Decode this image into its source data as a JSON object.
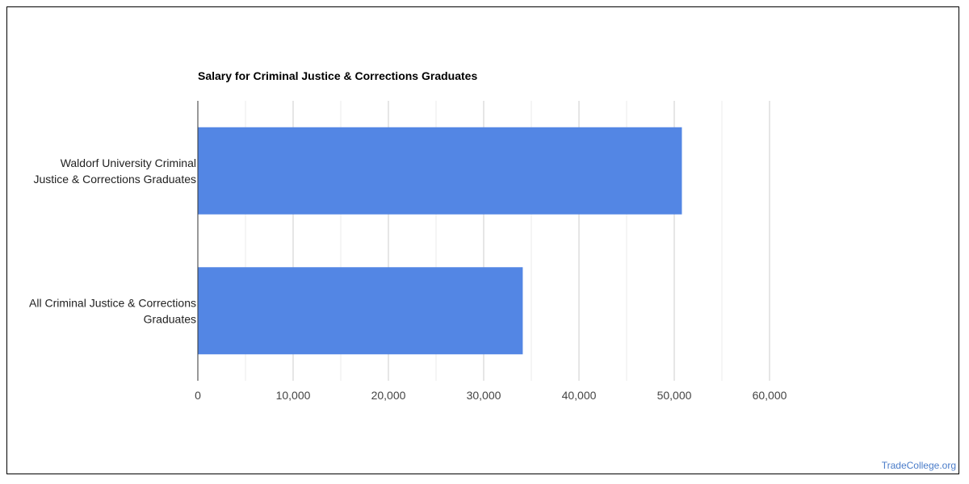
{
  "chart_data": {
    "type": "bar",
    "orientation": "horizontal",
    "title": "Salary for Criminal Justice & Corrections Graduates",
    "categories": [
      [
        "Waldorf University Criminal",
        "Justice & Corrections Graduates"
      ],
      [
        "All Criminal Justice & Corrections",
        "Graduates"
      ]
    ],
    "values": [
      50800,
      34100
    ],
    "xlim": [
      0,
      60000
    ],
    "x_ticks": [
      0,
      10000,
      20000,
      30000,
      40000,
      50000,
      60000
    ],
    "x_tick_labels": [
      "0",
      "10,000",
      "20,000",
      "30,000",
      "40,000",
      "50,000",
      "60,000"
    ],
    "minor_gridlines": true,
    "bar_color": "#5386e4",
    "gridline_color": "#cccccc",
    "minor_gridline_color": "#ebebeb"
  },
  "footer": {
    "watermark": "TradeCollege.org"
  }
}
